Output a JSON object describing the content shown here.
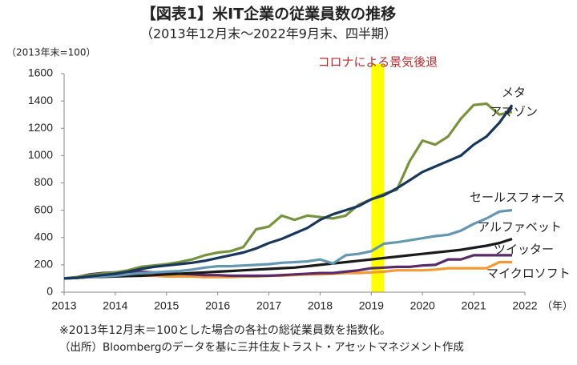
{
  "chart_data": {
    "type": "line",
    "title": "【図表1】米IT企業の従業員数の推移",
    "subtitle": "（2013年12月末～2022年9月末、四半期）",
    "y_label": "（2013年末=100）",
    "x_label": "（年）",
    "notes": [
      "※2013年12月末＝100とした場合の各社の総従業員数を指数化。",
      "（出所）Bloombergのデータを基に三井住友トラスト・アセットマネジメント作成"
    ],
    "annotation": {
      "text": "コロナによる景気後退",
      "x0": 2019,
      "x1": 2019.25,
      "color": "#ffff00",
      "text_color": "#c0282d"
    },
    "x": [
      2013,
      2013.25,
      2013.5,
      2013.75,
      2014,
      2014.25,
      2014.5,
      2014.75,
      2015,
      2015.25,
      2015.5,
      2015.75,
      2016,
      2016.25,
      2016.5,
      2016.75,
      2017,
      2017.25,
      2017.5,
      2017.75,
      2018,
      2018.25,
      2018.5,
      2018.75,
      2019,
      2019.25,
      2019.5,
      2019.75,
      2020,
      2020.25,
      2020.5,
      2020.75,
      2021,
      2021.25,
      2021.5,
      2021.75
    ],
    "xlim": [
      2013,
      2022
    ],
    "xticks": [
      2013,
      2014,
      2015,
      2016,
      2017,
      2018,
      2019,
      2020,
      2021,
      2022
    ],
    "ylim": [
      0,
      1600
    ],
    "yticks": [
      0,
      200,
      400,
      600,
      800,
      1000,
      1200,
      1400,
      1600
    ],
    "grid": false,
    "series": [
      {
        "name": "メタ",
        "color": "#17375e",
        "values": [
          100,
          105,
          115,
          125,
          135,
          150,
          170,
          185,
          195,
          205,
          215,
          230,
          250,
          270,
          290,
          320,
          360,
          390,
          430,
          470,
          530,
          570,
          600,
          630,
          680,
          710,
          760,
          820,
          880,
          920,
          960,
          1000,
          1080,
          1140,
          1240,
          1370
        ]
      },
      {
        "name": "アマゾン",
        "color": "#77933c",
        "values": [
          100,
          110,
          125,
          135,
          145,
          160,
          185,
          195,
          205,
          220,
          240,
          270,
          290,
          300,
          330,
          460,
          480,
          560,
          530,
          560,
          550,
          540,
          560,
          640,
          680,
          720,
          750,
          960,
          1110,
          1080,
          1140,
          1270,
          1370,
          1380,
          1300,
          1320
        ]
      },
      {
        "name": "セールスフォース",
        "color": "#6497b1",
        "values": [
          100,
          105,
          110,
          115,
          120,
          130,
          140,
          145,
          150,
          155,
          165,
          180,
          190,
          190,
          195,
          200,
          205,
          215,
          220,
          225,
          240,
          210,
          270,
          280,
          300,
          355,
          365,
          380,
          395,
          410,
          420,
          450,
          500,
          540,
          590,
          600
        ]
      },
      {
        "name": "アルファベット",
        "color": "#1a1a1a",
        "values": [
          100,
          105,
          110,
          112,
          115,
          118,
          120,
          125,
          130,
          135,
          140,
          145,
          150,
          155,
          160,
          165,
          170,
          175,
          180,
          190,
          200,
          210,
          220,
          230,
          240,
          250,
          260,
          270,
          280,
          290,
          300,
          310,
          325,
          340,
          360,
          390
        ]
      },
      {
        "name": "ツイッター",
        "color": "#5a2a6a",
        "values": [
          100,
          110,
          130,
          140,
          145,
          150,
          150,
          145,
          140,
          135,
          130,
          125,
          125,
          120,
          120,
          120,
          120,
          125,
          130,
          135,
          140,
          140,
          150,
          160,
          175,
          180,
          185,
          185,
          195,
          200,
          240,
          240,
          270,
          270,
          270,
          270
        ]
      },
      {
        "name": "マイクロソフト",
        "color": "#f39a34",
        "values": [
          100,
          105,
          120,
          125,
          125,
          125,
          120,
          120,
          115,
          115,
          115,
          110,
          110,
          110,
          115,
          115,
          120,
          120,
          125,
          130,
          130,
          135,
          140,
          140,
          145,
          150,
          160,
          160,
          160,
          165,
          175,
          175,
          175,
          175,
          220,
          220
        ]
      }
    ]
  }
}
